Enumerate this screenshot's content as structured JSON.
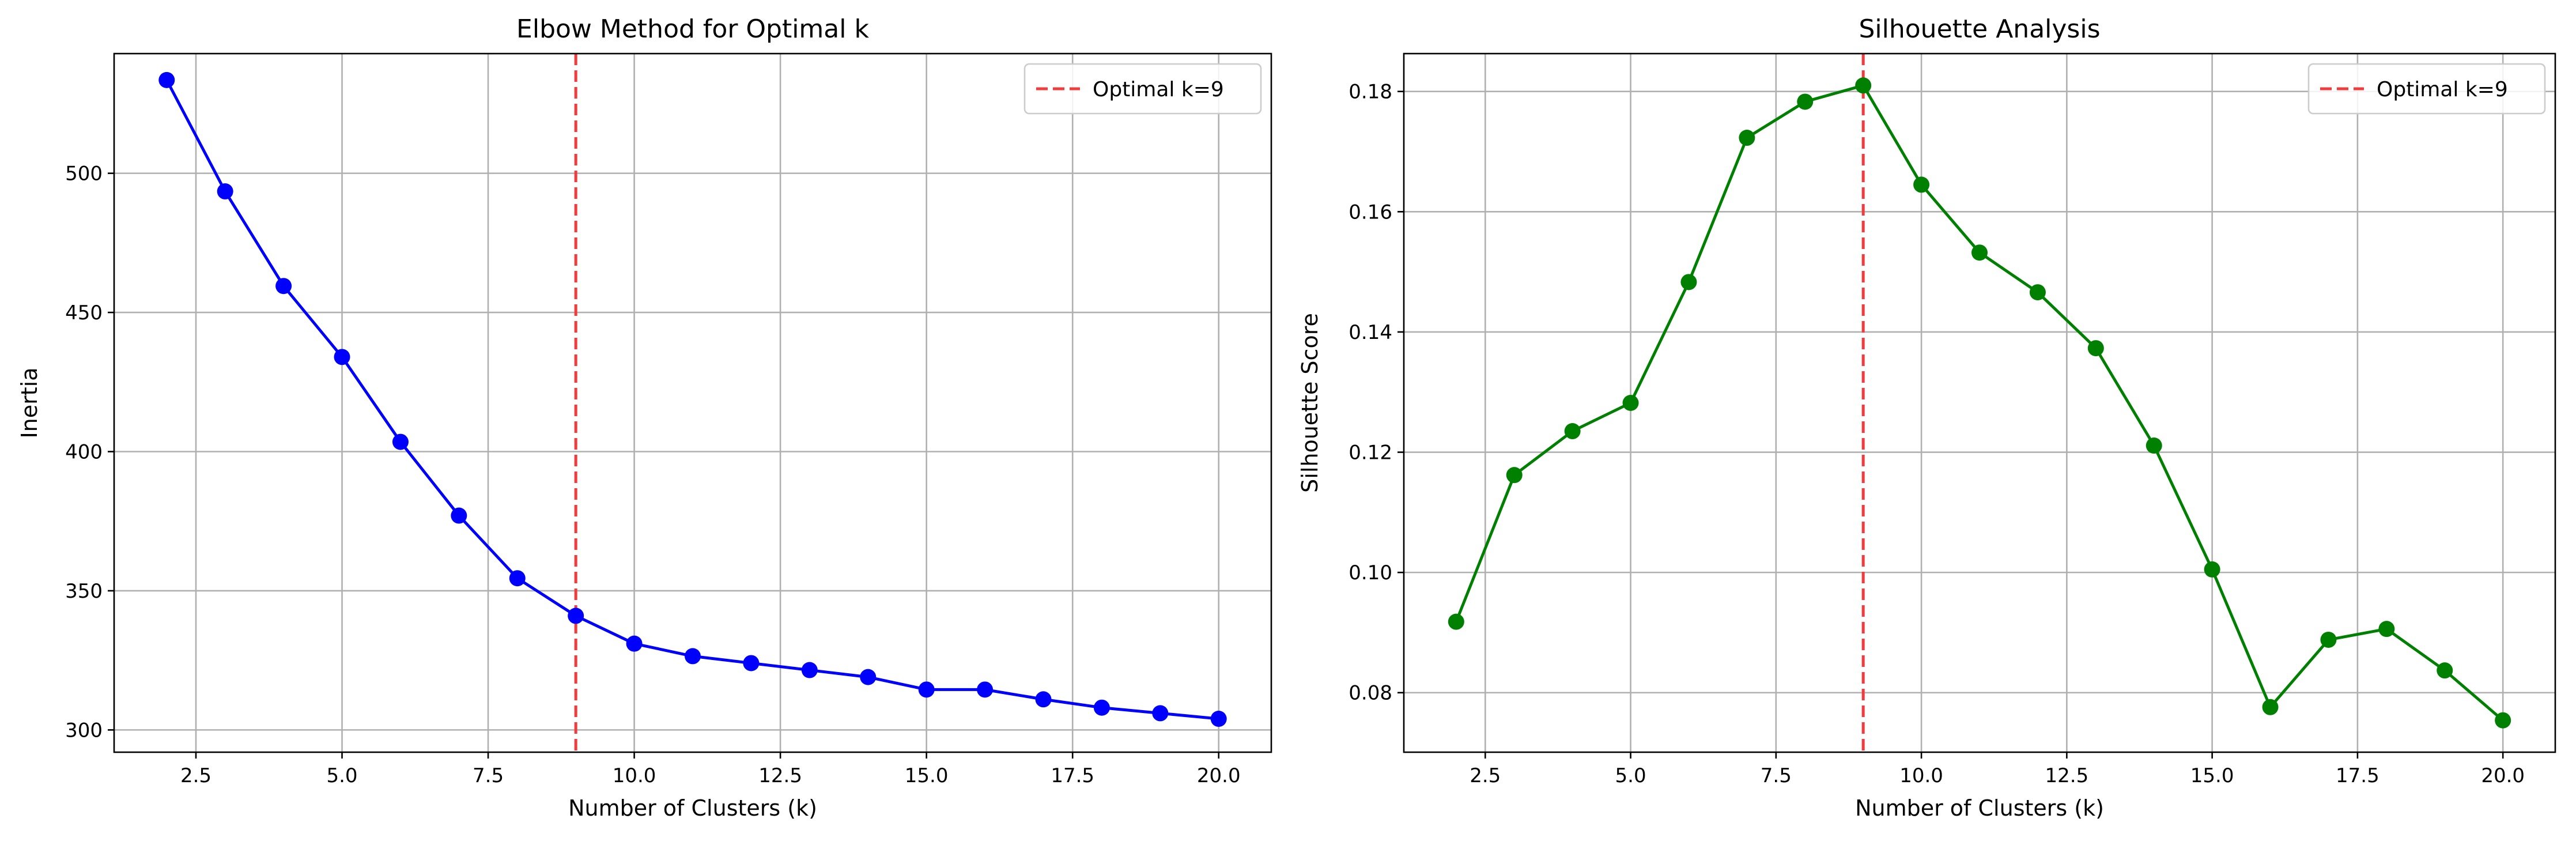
{
  "chart_data": [
    {
      "type": "line",
      "title": "Elbow Method for Optimal k",
      "xlabel": "Number of Clusters (k)",
      "ylabel": "Inertia",
      "xlim": [
        1.1,
        20.9
      ],
      "ylim": [
        292,
        543
      ],
      "xticks": [
        2.5,
        5.0,
        7.5,
        10.0,
        12.5,
        15.0,
        17.5,
        20.0
      ],
      "xtick_labels": [
        "2.5",
        "5.0",
        "7.5",
        "10.0",
        "12.5",
        "15.0",
        "17.5",
        "20.0"
      ],
      "yticks": [
        300,
        350,
        400,
        450,
        500
      ],
      "ytick_labels": [
        "300",
        "350",
        "400",
        "450",
        "500"
      ],
      "grid": true,
      "legend_position": "top-right",
      "series": [
        {
          "color": "#0000ff",
          "x": [
            2,
            3,
            4,
            5,
            6,
            7,
            8,
            9,
            10,
            11,
            12,
            13,
            14,
            15,
            16,
            17,
            18,
            19,
            20
          ],
          "y": [
            533.5,
            493.5,
            459.5,
            434,
            403.5,
            377,
            354.5,
            341,
            331,
            326.5,
            324,
            321.5,
            319,
            314.5,
            314.5,
            311,
            308,
            306,
            304
          ]
        }
      ],
      "reference_line": {
        "x": 9,
        "label": "Optimal k=9",
        "color": "#f03c3c",
        "style": "dashed"
      }
    },
    {
      "type": "line",
      "title": "Silhouette Analysis",
      "xlabel": "Number of Clusters (k)",
      "ylabel": "Silhouette Score",
      "xlim": [
        1.1,
        20.9
      ],
      "ylim": [
        0.0701,
        0.1863
      ],
      "xticks": [
        2.5,
        5.0,
        7.5,
        10.0,
        12.5,
        15.0,
        17.5,
        20.0
      ],
      "xtick_labels": [
        "2.5",
        "5.0",
        "7.5",
        "10.0",
        "12.5",
        "15.0",
        "17.5",
        "20.0"
      ],
      "yticks": [
        0.08,
        0.1,
        0.12,
        0.14,
        0.16,
        0.18
      ],
      "ytick_labels": [
        "0.08",
        "0.10",
        "0.12",
        "0.14",
        "0.16",
        "0.18"
      ],
      "grid": true,
      "legend_position": "top-right",
      "series": [
        {
          "color": "#008000",
          "x": [
            2,
            3,
            4,
            5,
            6,
            7,
            8,
            9,
            10,
            11,
            12,
            13,
            14,
            15,
            16,
            17,
            18,
            19,
            20
          ],
          "y": [
            0.0918,
            0.1162,
            0.1235,
            0.1282,
            0.1483,
            0.1723,
            0.1783,
            0.181,
            0.1645,
            0.1532,
            0.1466,
            0.1373,
            0.1211,
            0.1005,
            0.0776,
            0.0888,
            0.0906,
            0.0837,
            0.0754
          ]
        }
      ],
      "reference_line": {
        "x": 9,
        "label": "Optimal k=9",
        "color": "#f03c3c",
        "style": "dashed"
      }
    }
  ]
}
